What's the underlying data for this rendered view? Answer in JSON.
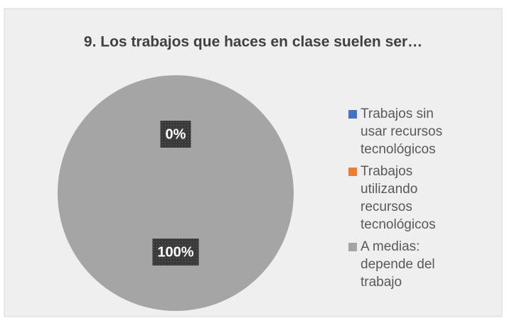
{
  "chart_data": {
    "type": "pie",
    "title": "9. Los trabajos que haces en clase suelen ser…",
    "categories": [
      "Trabajos sin usar recursos tecnológicos",
      "Trabajos utilizando recursos tecnológicos",
      "A medias: depende del trabajo"
    ],
    "values": [
      0,
      0,
      100
    ],
    "value_labels": [
      "0%",
      "0%",
      "100%"
    ],
    "colors": [
      "#4472c4",
      "#ed7d31",
      "#a5a5a5"
    ],
    "legend": "right"
  }
}
